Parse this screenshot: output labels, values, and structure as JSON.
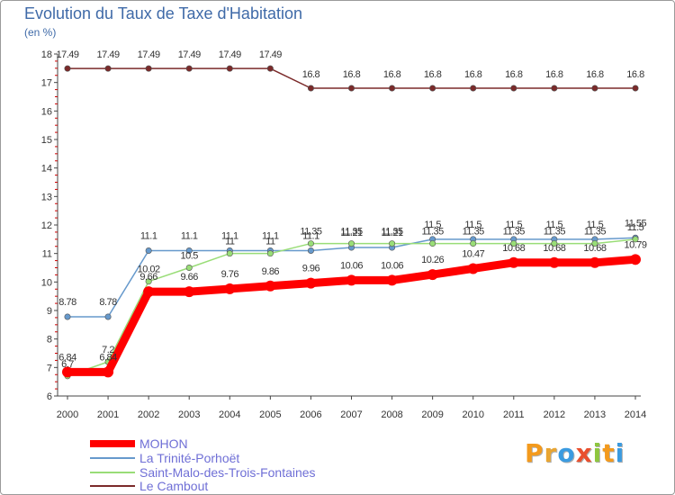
{
  "title": "Evolution du Taux de Taxe d'Habitation",
  "unit": "(en %)",
  "brand": {
    "letters": [
      "P",
      "r",
      "o",
      "x",
      "i",
      "t",
      "i"
    ],
    "colors": [
      "#f39a1d",
      "#e9a531",
      "#3b9be0",
      "#e94f2e",
      "#8ec63f",
      "#f39a1d",
      "#3b9be0"
    ]
  },
  "chart_data": {
    "type": "line",
    "title": "Evolution du Taux de Taxe d'Habitation",
    "ylabel": "(en %)",
    "xlabel": "",
    "ylim": [
      6,
      18
    ],
    "yticks": [
      "6",
      "7",
      "8",
      "9",
      "10",
      "11",
      "12",
      "13",
      "14",
      "15",
      "16",
      "17",
      "18"
    ],
    "categories": [
      "2000",
      "2001",
      "2002",
      "2003",
      "2004",
      "2005",
      "2006",
      "2007",
      "2008",
      "2009",
      "2010",
      "2011",
      "2012",
      "2013",
      "2014"
    ],
    "grid": false,
    "legend": "bottom-left",
    "series": [
      {
        "name": "Le Cambout",
        "color": "#7b2a2a",
        "values": [
          17.49,
          17.49,
          17.49,
          17.49,
          17.49,
          17.49,
          16.8,
          16.8,
          16.8,
          16.8,
          16.8,
          16.8,
          16.8,
          16.8,
          16.8
        ],
        "labels": [
          "17.49",
          "17.49",
          "17.49",
          "17.49",
          "17.49",
          "17.49",
          "16.8",
          "16.8",
          "16.8",
          "16.8",
          "16.8",
          "16.8",
          "16.8",
          "16.8",
          "16.8"
        ]
      },
      {
        "name": "La Trinité-Porhoët",
        "color": "#6699cc",
        "values": [
          8.78,
          8.78,
          11.1,
          11.1,
          11.1,
          11.1,
          11.1,
          11.21,
          11.21,
          11.5,
          11.5,
          11.5,
          11.5,
          11.5,
          11.55
        ],
        "labels": [
          "8.78",
          "8.78",
          "11.1",
          "11.1",
          "11.1",
          "11.1",
          "11.1",
          "11.21",
          "11.21",
          "11.5",
          "11.5",
          "11.5",
          "11.5",
          "11.5",
          "11.55"
        ]
      },
      {
        "name": "Saint-Malo-des-Trois-Fontaines",
        "color": "#99dd77",
        "values": [
          6.7,
          7.2,
          10.02,
          10.5,
          11,
          11,
          11.35,
          11.35,
          11.35,
          11.35,
          11.35,
          11.35,
          11.35,
          11.35,
          11.5
        ],
        "labels": [
          "6.7",
          "7.2",
          "10.02",
          "10.5",
          "11",
          "11",
          "11.35",
          "11.35",
          "11.35",
          "11.35",
          "11.35",
          "11.35",
          "11.35",
          "11.35",
          "11.5"
        ]
      },
      {
        "name": "MOHON",
        "color": "#ff0000",
        "values": [
          6.84,
          6.84,
          9.66,
          9.66,
          9.76,
          9.86,
          9.96,
          10.06,
          10.06,
          10.26,
          10.47,
          10.68,
          10.68,
          10.68,
          10.79
        ],
        "labels": [
          "6.84",
          "6.84",
          "9.66",
          "9.66",
          "9.76",
          "9.86",
          "9.96",
          "10.06",
          "10.06",
          "10.26",
          "10.47",
          "10.68",
          "10.68",
          "10.68",
          "10.79"
        ]
      }
    ],
    "legend_entries": [
      {
        "name": "MOHON",
        "color": "#ff0000"
      },
      {
        "name": "La Trinité-Porhoët",
        "color": "#6699cc"
      },
      {
        "name": "Saint-Malo-des-Trois-Fontaines",
        "color": "#99dd77"
      },
      {
        "name": "Le Cambout",
        "color": "#7b2a2a"
      }
    ]
  }
}
